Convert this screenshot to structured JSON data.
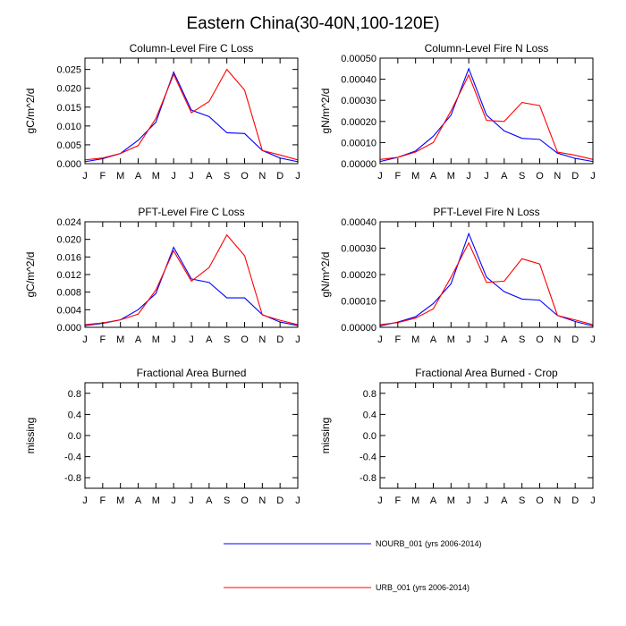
{
  "figure_title": "Eastern China(30-40N,100-120E)",
  "legend": [
    {
      "label": "NOURB_001 (yrs 2006-2014)",
      "color": "#0000ff"
    },
    {
      "label": "URB_001 (yrs 2006-2014)",
      "color": "#ff0000"
    }
  ],
  "chart_data": [
    {
      "type": "line",
      "title": "Column-Level Fire C Loss",
      "ylabel": "gC/m^2/d",
      "xlabel": "",
      "categories": [
        "J",
        "F",
        "M",
        "A",
        "M",
        "J",
        "J",
        "A",
        "S",
        "O",
        "N",
        "D",
        "J"
      ],
      "ylim": [
        0,
        0.028
      ],
      "yticks": [
        0,
        0.005,
        0.01,
        0.015,
        0.02,
        0.025
      ],
      "ytick_labels": [
        "0.000",
        "0.005",
        "0.010",
        "0.015",
        "0.020",
        "0.025"
      ],
      "series": [
        {
          "name": "NOURB_001 (yrs 2006-2014)",
          "color": "#0000ff",
          "values": [
            0.0005,
            0.0013,
            0.0027,
            0.0062,
            0.011,
            0.0243,
            0.0142,
            0.0125,
            0.0082,
            0.008,
            0.0035,
            0.0015,
            0.0005
          ]
        },
        {
          "name": "URB_001 (yrs 2006-2014)",
          "color": "#ff0000",
          "values": [
            0.001,
            0.0015,
            0.0027,
            0.0048,
            0.012,
            0.0237,
            0.0135,
            0.0165,
            0.025,
            0.0195,
            0.0035,
            0.0023,
            0.001
          ]
        }
      ]
    },
    {
      "type": "line",
      "title": "Column-Level Fire N Loss",
      "ylabel": "gN/m^2/d",
      "xlabel": "",
      "categories": [
        "J",
        "F",
        "M",
        "A",
        "M",
        "J",
        "J",
        "A",
        "S",
        "O",
        "N",
        "D",
        "J"
      ],
      "ylim": [
        0,
        0.0005
      ],
      "yticks": [
        0,
        0.0001,
        0.0002,
        0.0003,
        0.0004,
        0.0005
      ],
      "ytick_labels": [
        "0.00000",
        "0.00010",
        "0.00020",
        "0.00030",
        "0.00040",
        "0.00050"
      ],
      "series": [
        {
          "name": "NOURB_001 (yrs 2006-2014)",
          "color": "#0000ff",
          "values": [
            1e-05,
            3e-05,
            6e-05,
            0.00013,
            0.00023,
            0.00045,
            0.00023,
            0.000155,
            0.00012,
            0.000115,
            5e-05,
            2.5e-05,
            1e-05
          ]
        },
        {
          "name": "URB_001 (yrs 2006-2014)",
          "color": "#ff0000",
          "values": [
            2e-05,
            3e-05,
            5.5e-05,
            0.0001,
            0.00025,
            0.00042,
            0.000205,
            0.0002,
            0.00029,
            0.000275,
            5.5e-05,
            4e-05,
            2e-05
          ]
        }
      ]
    },
    {
      "type": "line",
      "title": "PFT-Level Fire C Loss",
      "ylabel": "gC/m^2/d",
      "xlabel": "",
      "categories": [
        "J",
        "F",
        "M",
        "A",
        "M",
        "J",
        "J",
        "A",
        "S",
        "O",
        "N",
        "D",
        "J"
      ],
      "ylim": [
        0,
        0.024
      ],
      "yticks": [
        0,
        0.004,
        0.008,
        0.012,
        0.016,
        0.02,
        0.024
      ],
      "ytick_labels": [
        "0.000",
        "0.004",
        "0.008",
        "0.012",
        "0.016",
        "0.020",
        "0.024"
      ],
      "series": [
        {
          "name": "NOURB_001 (yrs 2006-2014)",
          "color": "#0000ff",
          "values": [
            0.0004,
            0.0009,
            0.0017,
            0.004,
            0.0077,
            0.0182,
            0.011,
            0.0102,
            0.0067,
            0.0067,
            0.0029,
            0.0012,
            0.0004
          ]
        },
        {
          "name": "URB_001 (yrs 2006-2014)",
          "color": "#ff0000",
          "values": [
            0.0006,
            0.001,
            0.0017,
            0.003,
            0.0085,
            0.0174,
            0.0105,
            0.0136,
            0.021,
            0.0163,
            0.0028,
            0.0016,
            0.0006
          ]
        }
      ]
    },
    {
      "type": "line",
      "title": "PFT-Level Fire N Loss",
      "ylabel": "gN/m^2/d",
      "xlabel": "",
      "categories": [
        "J",
        "F",
        "M",
        "A",
        "M",
        "J",
        "J",
        "A",
        "S",
        "O",
        "N",
        "D",
        "J"
      ],
      "ylim": [
        0,
        0.0004
      ],
      "yticks": [
        0,
        0.0001,
        0.0002,
        0.0003,
        0.0004
      ],
      "ytick_labels": [
        "0.00000",
        "0.00010",
        "0.00020",
        "0.00030",
        "0.00040"
      ],
      "series": [
        {
          "name": "NOURB_001 (yrs 2006-2014)",
          "color": "#0000ff",
          "values": [
            5e-06,
            2e-05,
            4e-05,
            9e-05,
            0.000165,
            0.000355,
            0.00019,
            0.000135,
            0.000107,
            0.000103,
            4.5e-05,
            2.2e-05,
            5e-06
          ]
        },
        {
          "name": "URB_001 (yrs 2006-2014)",
          "color": "#ff0000",
          "values": [
            1e-05,
            1.8e-05,
            3.5e-05,
            7e-05,
            0.00019,
            0.00032,
            0.00017,
            0.000175,
            0.00026,
            0.00024,
            4.5e-05,
            2.8e-05,
            1e-05
          ]
        }
      ]
    },
    {
      "type": "line",
      "title": "Fractional Area Burned",
      "ylabel": "missing",
      "xlabel": "",
      "categories": [
        "J",
        "F",
        "M",
        "A",
        "M",
        "J",
        "J",
        "A",
        "S",
        "O",
        "N",
        "D",
        "J"
      ],
      "ylim": [
        -1,
        1
      ],
      "yticks": [
        -0.8,
        -0.4,
        0,
        0.4,
        0.8
      ],
      "ytick_labels": [
        "-0.8",
        "-0.4",
        "0.0",
        "0.4",
        "0.8"
      ],
      "series": []
    },
    {
      "type": "line",
      "title": "Fractional Area Burned - Crop",
      "ylabel": "missing",
      "xlabel": "",
      "categories": [
        "J",
        "F",
        "M",
        "A",
        "M",
        "J",
        "J",
        "A",
        "S",
        "O",
        "N",
        "D",
        "J"
      ],
      "ylim": [
        -1,
        1
      ],
      "yticks": [
        -0.8,
        -0.4,
        0,
        0.4,
        0.8
      ],
      "ytick_labels": [
        "-0.8",
        "-0.4",
        "0.0",
        "0.4",
        "0.8"
      ],
      "series": []
    }
  ]
}
